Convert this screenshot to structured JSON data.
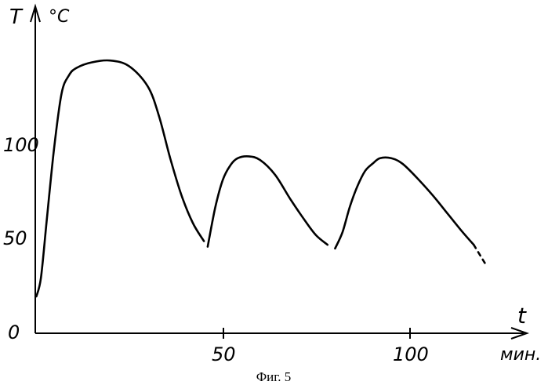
{
  "chart_data": {
    "type": "line",
    "title": "",
    "caption": "Фиг. 5",
    "xlabel": "t",
    "xunit": "мин.",
    "ylabel": "T",
    "yunit": "°C",
    "xlim": [
      0,
      120
    ],
    "ylim": [
      0,
      150
    ],
    "x_ticks": [
      "50",
      "100"
    ],
    "y_ticks": [
      "0",
      "50",
      "100"
    ],
    "grid": false,
    "color": "#000000",
    "series": [
      {
        "points": [
          [
            0.3,
            20
          ],
          [
            1.5,
            30
          ],
          [
            3,
            60
          ],
          [
            5,
            100
          ],
          [
            7,
            130
          ],
          [
            9,
            140
          ],
          [
            11,
            144
          ],
          [
            15,
            147
          ],
          [
            20,
            148
          ],
          [
            25,
            145
          ],
          [
            30,
            134
          ],
          [
            33,
            118
          ],
          [
            36,
            95
          ],
          [
            39,
            75
          ],
          [
            42,
            60
          ],
          [
            45,
            50
          ]
        ]
      },
      {
        "points": [
          [
            46,
            47
          ],
          [
            48,
            68
          ],
          [
            50,
            83
          ],
          [
            52,
            91
          ],
          [
            54,
            95
          ],
          [
            57,
            96
          ],
          [
            60,
            94
          ],
          [
            64,
            86
          ],
          [
            68,
            73
          ],
          [
            72,
            61
          ],
          [
            75,
            53
          ],
          [
            78,
            48
          ]
        ]
      },
      {
        "points": [
          [
            80,
            46
          ],
          [
            82,
            55
          ],
          [
            84,
            69
          ],
          [
            86,
            80
          ],
          [
            88,
            88
          ],
          [
            90,
            92
          ],
          [
            92,
            95
          ],
          [
            95,
            95
          ],
          [
            98,
            92
          ],
          [
            102,
            84
          ],
          [
            106,
            75
          ],
          [
            110,
            65
          ],
          [
            114,
            55
          ],
          [
            117,
            48
          ]
        ]
      },
      {
        "style": "dashed",
        "points": [
          [
            117,
            48
          ],
          [
            120,
            38
          ]
        ]
      }
    ]
  }
}
